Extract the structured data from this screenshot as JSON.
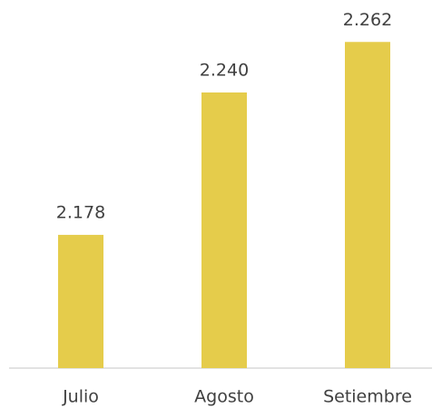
{
  "chart_data": {
    "type": "bar",
    "categories": [
      "Julio",
      "Agosto",
      "Setiembre"
    ],
    "values": [
      2178,
      2240,
      2262
    ],
    "value_labels": [
      "2.178",
      "2.240",
      "2.262"
    ],
    "color": "#e5cc4b",
    "ylim": [
      2120,
      2270
    ]
  }
}
